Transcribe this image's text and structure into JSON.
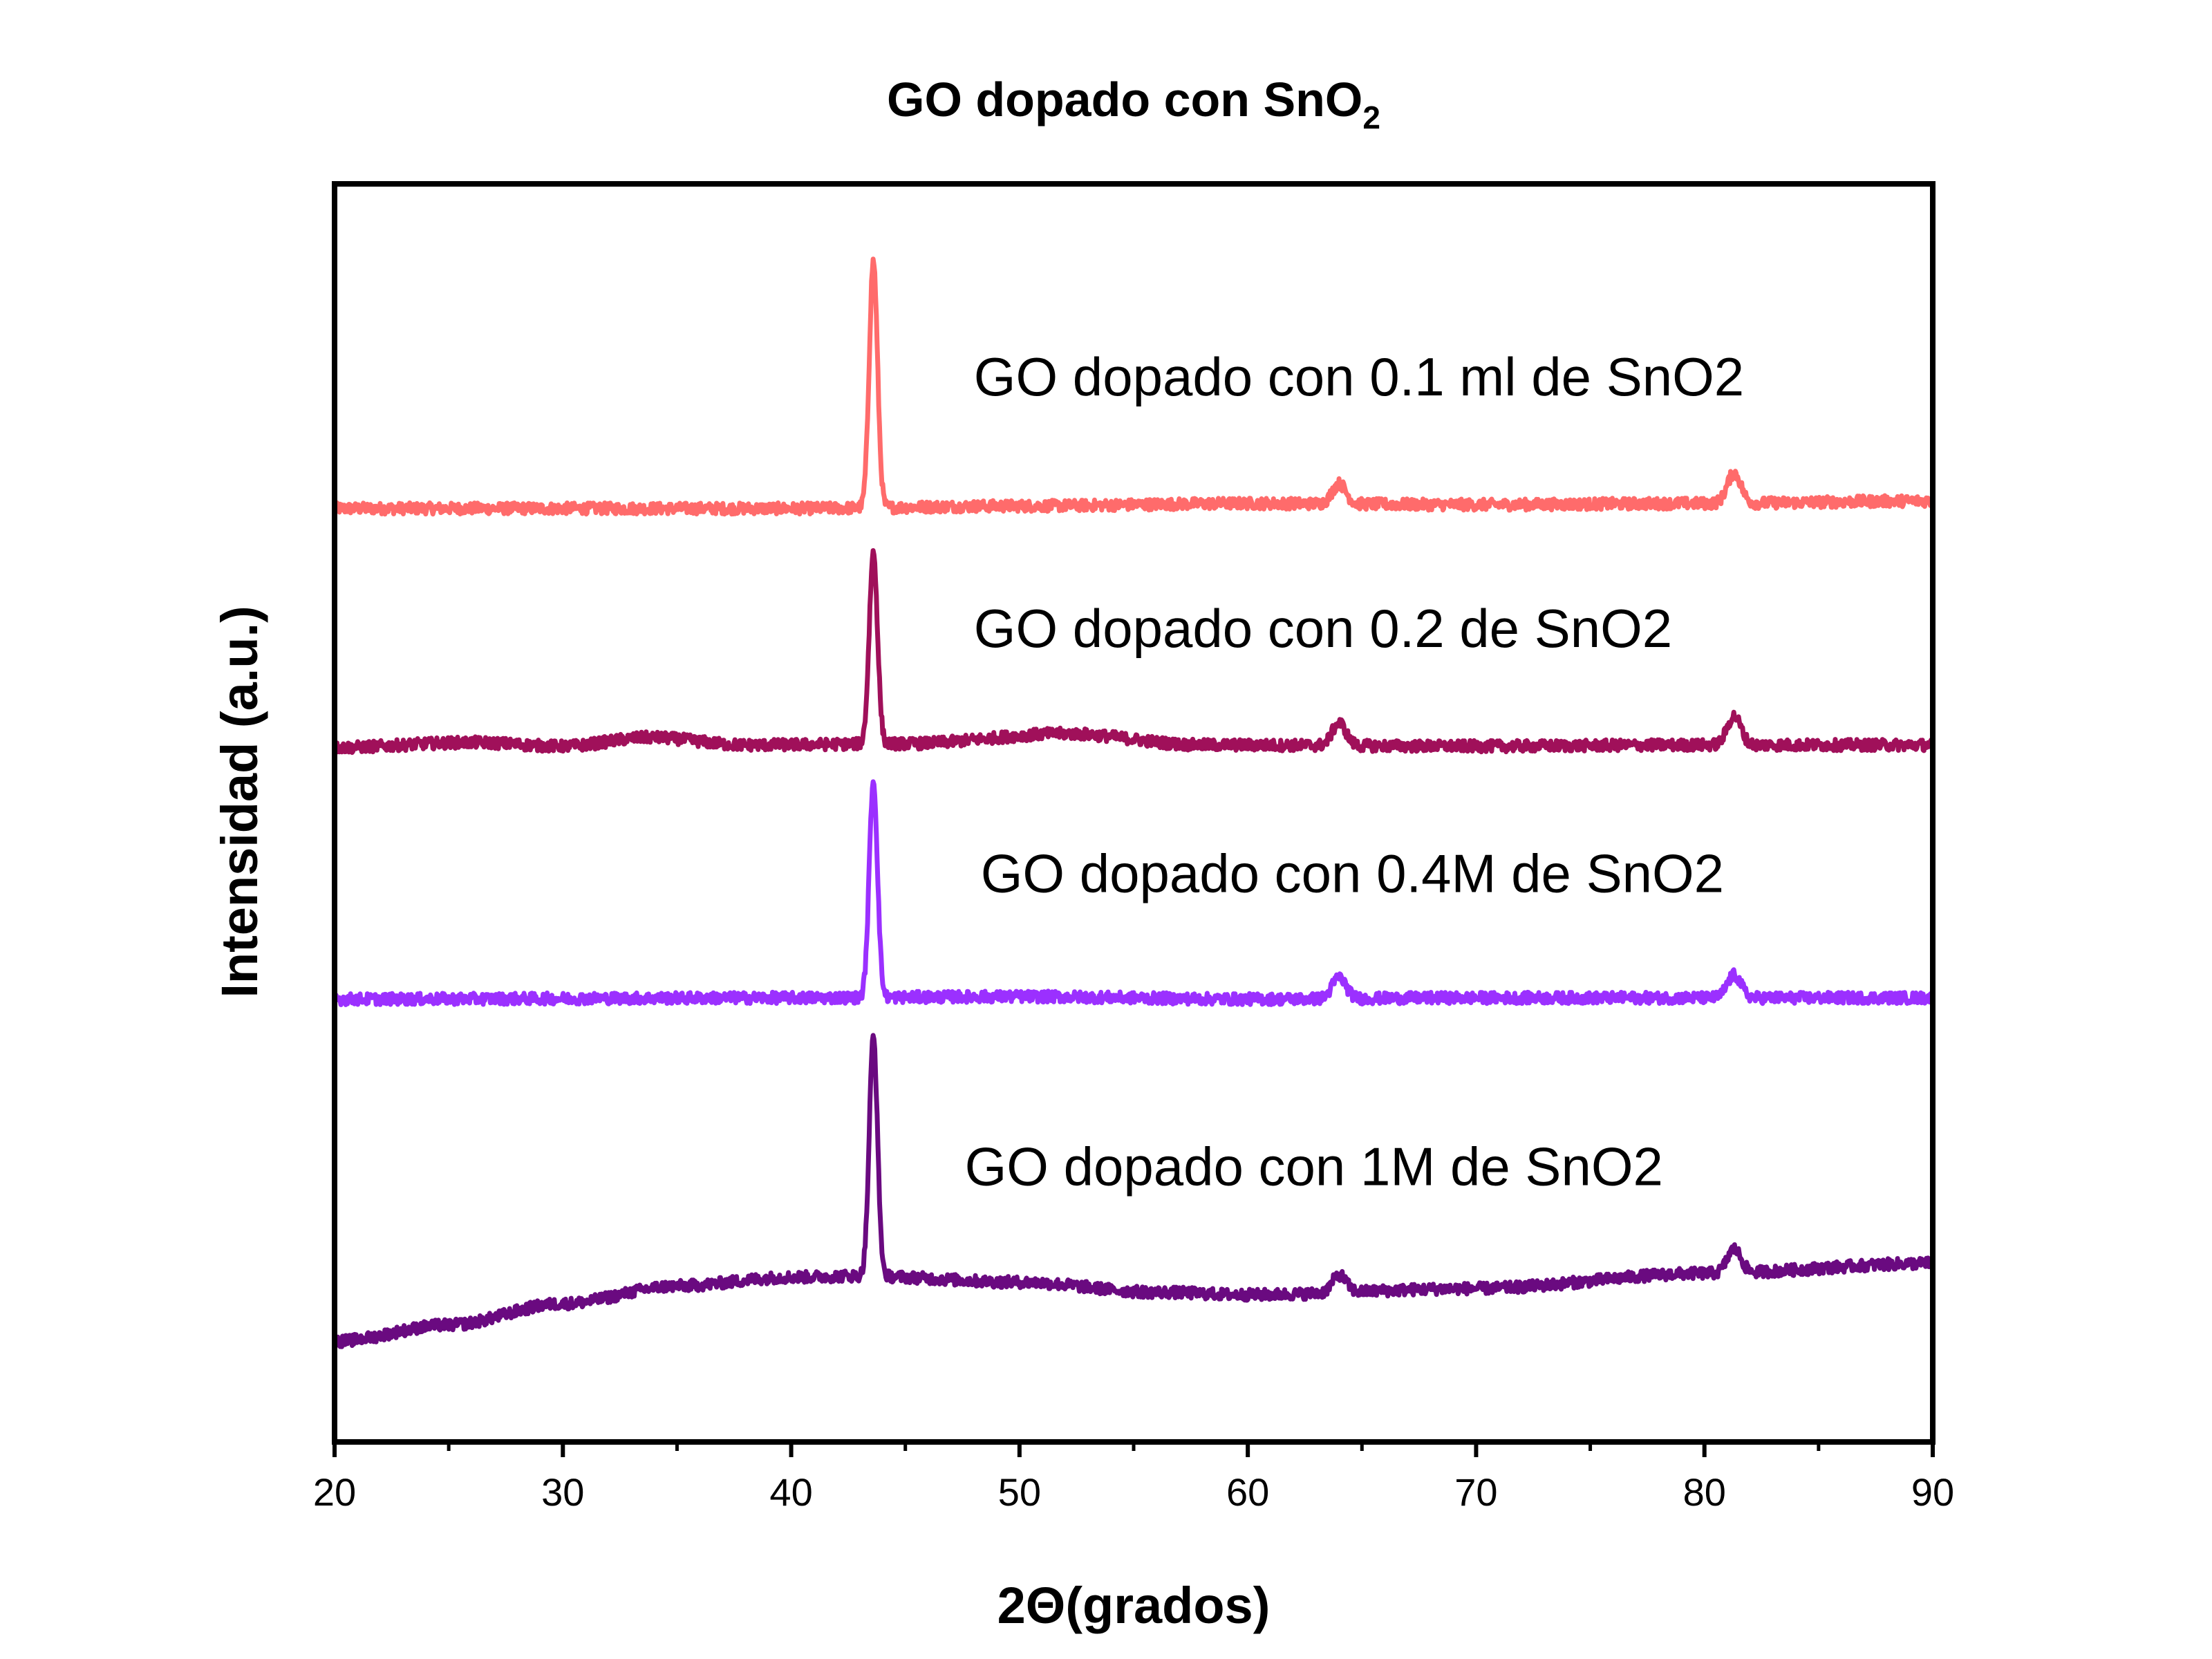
{
  "chart_data": {
    "type": "line",
    "title": "GO dopado con SnO",
    "title_subscript": "2",
    "xlabel": "2Θ(grados)",
    "ylabel": "Intensidad (a.u.)",
    "xlim": [
      20,
      90
    ],
    "ylim": [
      0,
      100
    ],
    "x_ticks": [
      20,
      30,
      40,
      50,
      60,
      70,
      80,
      90
    ],
    "x_tick_labels": [
      "20",
      "30",
      "40",
      "50",
      "60",
      "70",
      "80",
      "90"
    ],
    "y_tick_labels_visible": false,
    "grid": false,
    "legend": "none",
    "noise_amplitude": 0.45,
    "series": [
      {
        "name": "GO dopado con 0.1 ml de SnO2",
        "color": "#ff6b6b",
        "baseline": [
          [
            20,
            74.2
          ],
          [
            40,
            74.2
          ],
          [
            50,
            74.4
          ],
          [
            60,
            74.6
          ],
          [
            70,
            74.5
          ],
          [
            80,
            74.6
          ],
          [
            90,
            74.8
          ]
        ],
        "peaks": [
          {
            "center": 43.6,
            "height": 19.6,
            "width": 0.18
          },
          {
            "center": 64.0,
            "height": 1.6,
            "width": 0.3
          },
          {
            "center": 81.3,
            "height": 2.4,
            "width": 0.3
          }
        ]
      },
      {
        "name": "GO dopado con 0.2 de SnO2",
        "color": "#a0105a",
        "baseline": [
          [
            20,
            55.2
          ],
          [
            26,
            55.6
          ],
          [
            30,
            55.3
          ],
          [
            33.8,
            56.0
          ],
          [
            38,
            55.4
          ],
          [
            45,
            55.5
          ],
          [
            52,
            56.3
          ],
          [
            58,
            55.4
          ],
          [
            70,
            55.3
          ],
          [
            80,
            55.4
          ],
          [
            90,
            55.4
          ]
        ],
        "peaks": [
          {
            "center": 43.6,
            "height": 15.2,
            "width": 0.18
          },
          {
            "center": 64.0,
            "height": 1.8,
            "width": 0.3
          },
          {
            "center": 81.3,
            "height": 2.3,
            "width": 0.3
          }
        ]
      },
      {
        "name": "GO dopado con  0.4M de SnO2",
        "color": "#9b30ff",
        "baseline": [
          [
            20,
            35.2
          ],
          [
            40,
            35.3
          ],
          [
            50,
            35.4
          ],
          [
            60,
            35.2
          ],
          [
            70,
            35.3
          ],
          [
            80,
            35.3
          ],
          [
            90,
            35.3
          ]
        ],
        "peaks": [
          {
            "center": 43.6,
            "height": 17.2,
            "width": 0.18
          },
          {
            "center": 64.0,
            "height": 1.7,
            "width": 0.3
          },
          {
            "center": 81.3,
            "height": 1.8,
            "width": 0.3
          }
        ]
      },
      {
        "name": "GO dopado con 1M de SnO2",
        "color": "#6a0a80",
        "baseline": [
          [
            20,
            8.0
          ],
          [
            25,
            9.3
          ],
          [
            30,
            11.0
          ],
          [
            35,
            12.4
          ],
          [
            40,
            13.1
          ],
          [
            43,
            13.2
          ],
          [
            50,
            12.7
          ],
          [
            56,
            11.9
          ],
          [
            60,
            11.7
          ],
          [
            70,
            12.2
          ],
          [
            80,
            13.4
          ],
          [
            90,
            14.2
          ]
        ],
        "peaks": [
          {
            "center": 43.6,
            "height": 19.0,
            "width": 0.18
          },
          {
            "center": 64.0,
            "height": 1.4,
            "width": 0.3
          },
          {
            "center": 81.3,
            "height": 1.9,
            "width": 0.3
          }
        ]
      }
    ],
    "annotations": [
      {
        "text": "GO dopado con 0.1 ml de SnO2",
        "x": 48.0,
        "y": 83.2
      },
      {
        "text": "GO dopado con 0.2 de SnO2",
        "x": 48.0,
        "y": 63.2
      },
      {
        "text": "GO dopado con  0.4M de SnO2",
        "x": 48.3,
        "y": 43.7
      },
      {
        "text": "GO dopado con 1M de SnO2",
        "x": 47.6,
        "y": 20.4
      }
    ]
  }
}
